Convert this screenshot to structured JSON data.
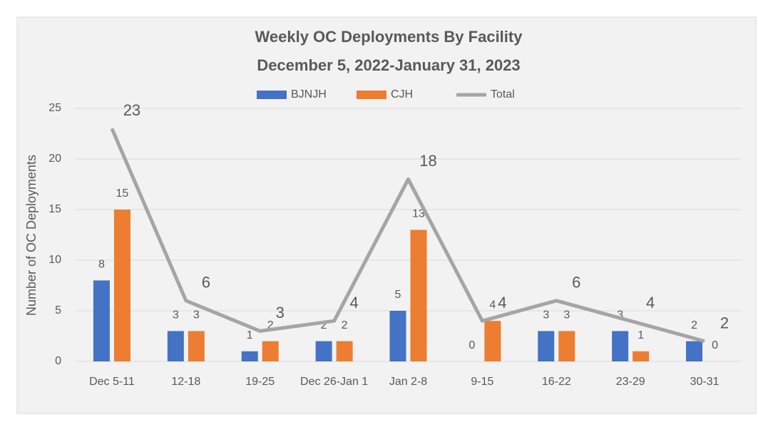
{
  "chart_data": {
    "type": "bar_line",
    "title": "Weekly OC Deployments By Facility",
    "subtitle": "December 5, 2022-January 31, 2023",
    "y_label": "Number of OC Deployments",
    "categories": [
      "Dec 5-11",
      "12-18",
      "19-25",
      "Dec 26-Jan 1",
      "Jan 2-8",
      "9-15",
      "16-22",
      "23-29",
      "30-31"
    ],
    "series": [
      {
        "name": "BJNJH",
        "type": "bar",
        "color": "#4472c4",
        "values": [
          8,
          3,
          1,
          2,
          5,
          0,
          3,
          3,
          2
        ]
      },
      {
        "name": "CJH",
        "type": "bar",
        "color": "#ed7d31",
        "values": [
          15,
          3,
          2,
          2,
          13,
          4,
          3,
          1,
          0
        ]
      },
      {
        "name": "Total",
        "type": "line",
        "color": "#a5a5a5",
        "values": [
          23,
          6,
          3,
          4,
          18,
          4,
          6,
          4,
          2
        ]
      }
    ],
    "ylim": [
      0,
      25
    ],
    "yticks": [
      0,
      5,
      10,
      15,
      20,
      25
    ],
    "grid": true,
    "legend": "top"
  }
}
